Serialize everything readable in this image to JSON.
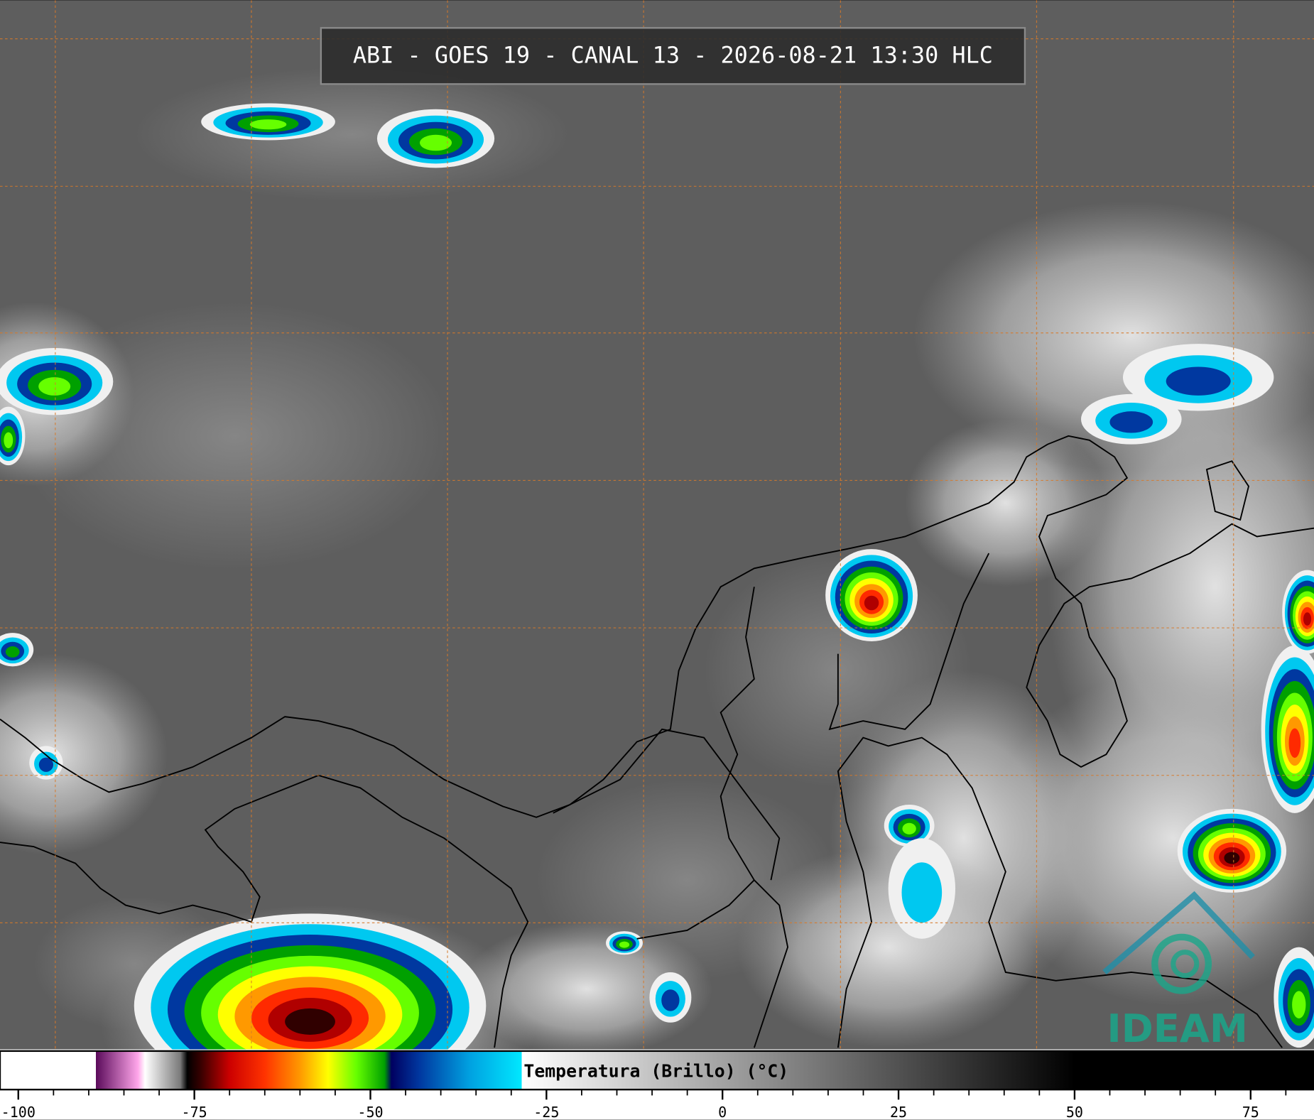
{
  "title": "ABI - GOES 19 - CANAL 13 - 2026-08-21 13:30 HLC",
  "colorbar": {
    "label": "Temperatura (Brillo) (°C)",
    "lim": [
      -102.6,
      84
    ],
    "ticks": [
      -100,
      -75,
      -50,
      -25,
      0,
      25,
      50,
      75
    ],
    "minor_ticks": [
      -95,
      -90,
      -85,
      -80,
      -70,
      -65,
      -60,
      -55,
      -45,
      -40,
      -35,
      -30,
      -20,
      -15,
      -10,
      -5,
      5,
      10,
      15,
      20,
      30,
      35,
      40,
      45,
      55,
      60,
      65,
      70,
      80
    ],
    "stops": [
      [
        -102.6,
        "#ffffff"
      ],
      [
        -89,
        "#ffffff"
      ],
      [
        -89,
        "#5a0a5a"
      ],
      [
        -83,
        "#ffa6ea"
      ],
      [
        -82,
        "#ffffff"
      ],
      [
        -77,
        "#7a7a7a"
      ],
      [
        -76,
        "#000000"
      ],
      [
        -74,
        "#3a0000"
      ],
      [
        -70,
        "#cc0000"
      ],
      [
        -65,
        "#ff3300"
      ],
      [
        -60,
        "#ff9900"
      ],
      [
        -56,
        "#ffff00"
      ],
      [
        -52,
        "#66ff00"
      ],
      [
        -48,
        "#00a000"
      ],
      [
        -47,
        "#000060"
      ],
      [
        -43,
        "#0038a0"
      ],
      [
        -36,
        "#00a0e0"
      ],
      [
        -28.5,
        "#00e8ff"
      ],
      [
        -28.5,
        "#ffffff"
      ],
      [
        50,
        "#000000"
      ],
      [
        84,
        "#000000"
      ]
    ]
  },
  "logo": {
    "text": "IDEAM"
  }
}
